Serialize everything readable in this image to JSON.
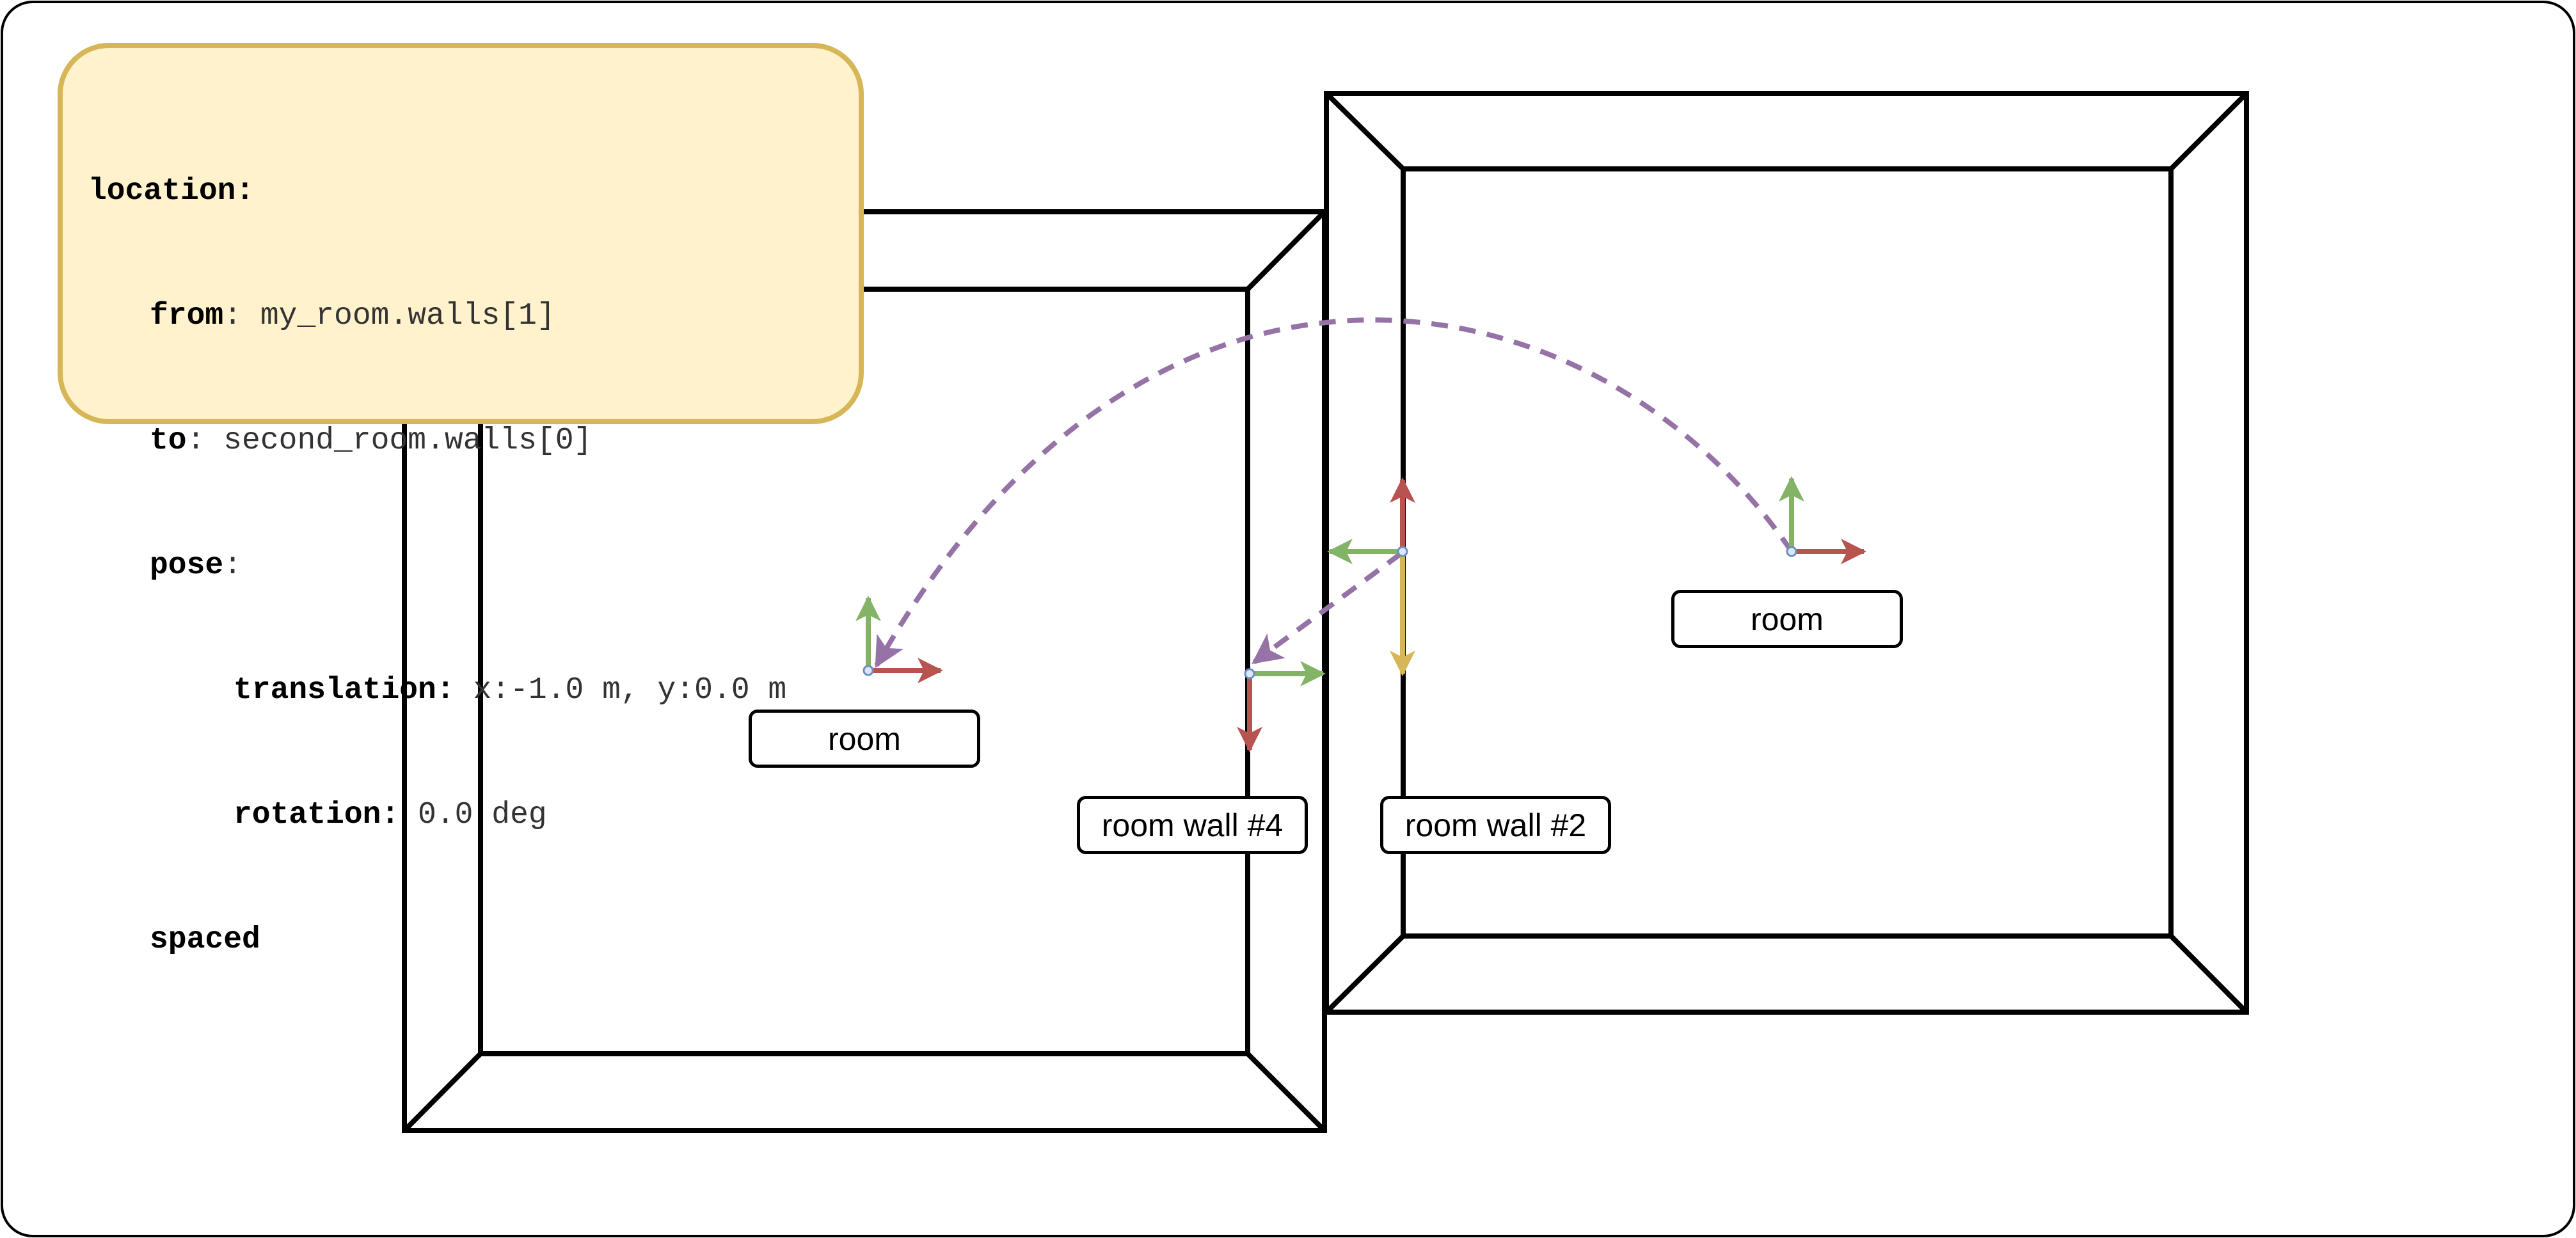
{
  "code": {
    "location_key": "location:",
    "from_key": "from",
    "from_value": " my_room.walls[1]",
    "to_key": "to",
    "to_value": " second_room.walls[0]",
    "pose_key": "pose",
    "translation_key": "translation",
    "translation_value": " x:-1.0 m, y:0.0 m",
    "rotation_key": "rotation",
    "rotation_value": " 0.0 deg",
    "spaced_key": "spaced",
    "colon": ":"
  },
  "labels": {
    "room_left": "room",
    "room_right": "room",
    "wall_4": "room wall #4",
    "wall_2": "room wall #2"
  },
  "colors": {
    "x_axis": "#b85450",
    "y_axis": "#82b366",
    "z_axis": "#d6b656",
    "path": "#9673a6",
    "origin": "#6c8ebf",
    "code_fill": "#fff2cc",
    "code_stroke": "#d6b656"
  }
}
